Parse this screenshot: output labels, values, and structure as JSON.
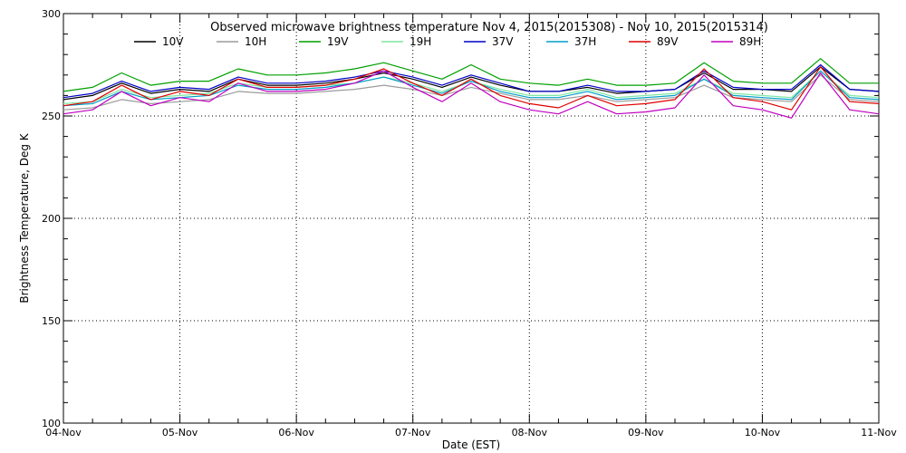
{
  "chart_data": {
    "type": "line",
    "title": "Observed microwave brightness temperature Nov  4, 2015(2015308) - Nov 10, 2015(2015314)",
    "xlabel": "Date (EST)",
    "ylabel": "Brightness Temperature, Deg K",
    "ylim": [
      100,
      300
    ],
    "yticks": [
      100,
      150,
      200,
      250,
      300
    ],
    "xlim": [
      "2015-11-04",
      "2015-11-11"
    ],
    "xtick_labels": [
      "04-Nov",
      "05-Nov",
      "06-Nov",
      "07-Nov",
      "08-Nov",
      "09-Nov",
      "10-Nov",
      "11-Nov"
    ],
    "grid": true,
    "legend_position": "top",
    "x": [
      "2015-11-04T00:00",
      "2015-11-04T06:00",
      "2015-11-04T12:00",
      "2015-11-04T18:00",
      "2015-11-05T00:00",
      "2015-11-05T06:00",
      "2015-11-05T12:00",
      "2015-11-05T18:00",
      "2015-11-06T00:00",
      "2015-11-06T06:00",
      "2015-11-06T12:00",
      "2015-11-06T18:00",
      "2015-11-07T00:00",
      "2015-11-07T06:00",
      "2015-11-07T12:00",
      "2015-11-07T18:00",
      "2015-11-08T00:00",
      "2015-11-08T06:00",
      "2015-11-08T12:00",
      "2015-11-08T18:00",
      "2015-11-09T00:00",
      "2015-11-09T06:00",
      "2015-11-09T12:00",
      "2015-11-09T18:00",
      "2015-11-10T00:00",
      "2015-11-10T06:00",
      "2015-11-10T12:00",
      "2015-11-10T18:00",
      "2015-11-11T00:00"
    ],
    "series": [
      {
        "name": "10V",
        "color": "#000000",
        "values": [
          258,
          260,
          266,
          261,
          263,
          262,
          268,
          265,
          265,
          266,
          268,
          271,
          268,
          264,
          269,
          265,
          262,
          262,
          264,
          261,
          262,
          263,
          271,
          263,
          263,
          262,
          274,
          263,
          262
        ]
      },
      {
        "name": "10H",
        "color": "#9c9c9c",
        "values": [
          253,
          254,
          258,
          256,
          257,
          258,
          262,
          261,
          261,
          262,
          263,
          265,
          263,
          260,
          264,
          261,
          258,
          258,
          260,
          257,
          258,
          259,
          265,
          259,
          258,
          257,
          270,
          258,
          257
        ]
      },
      {
        "name": "19V",
        "color": "#00a000",
        "values": [
          262,
          264,
          271,
          265,
          267,
          267,
          273,
          270,
          270,
          271,
          273,
          276,
          272,
          268,
          275,
          268,
          266,
          265,
          268,
          265,
          265,
          266,
          276,
          267,
          266,
          266,
          278,
          266,
          266
        ]
      },
      {
        "name": "19H",
        "color": "#7fe6a0",
        "values": [
          256,
          257,
          263,
          259,
          260,
          261,
          266,
          264,
          264,
          265,
          266,
          269,
          266,
          262,
          267,
          263,
          260,
          260,
          263,
          259,
          260,
          261,
          268,
          261,
          260,
          259,
          272,
          260,
          259
        ]
      },
      {
        "name": "37V",
        "color": "#0000c8",
        "values": [
          259,
          261,
          267,
          262,
          264,
          263,
          269,
          266,
          266,
          267,
          269,
          272,
          269,
          265,
          270,
          266,
          262,
          262,
          265,
          262,
          262,
          263,
          272,
          264,
          263,
          263,
          275,
          263,
          262
        ]
      },
      {
        "name": "37H",
        "color": "#00a0c8",
        "values": [
          255,
          256,
          262,
          258,
          259,
          260,
          265,
          263,
          263,
          264,
          266,
          269,
          265,
          261,
          267,
          262,
          259,
          259,
          262,
          258,
          259,
          260,
          268,
          260,
          259,
          258,
          272,
          259,
          258
        ]
      },
      {
        "name": "89V",
        "color": "#e00000",
        "values": [
          255,
          257,
          265,
          258,
          262,
          260,
          268,
          264,
          264,
          265,
          268,
          273,
          266,
          260,
          268,
          260,
          256,
          254,
          260,
          255,
          256,
          258,
          273,
          259,
          257,
          253,
          274,
          257,
          256
        ]
      },
      {
        "name": "89H",
        "color": "#c000c0",
        "values": [
          251,
          253,
          262,
          255,
          259,
          257,
          266,
          262,
          262,
          263,
          266,
          272,
          264,
          257,
          266,
          257,
          253,
          251,
          257,
          251,
          252,
          254,
          270,
          255,
          253,
          249,
          271,
          253,
          251
        ]
      }
    ]
  }
}
